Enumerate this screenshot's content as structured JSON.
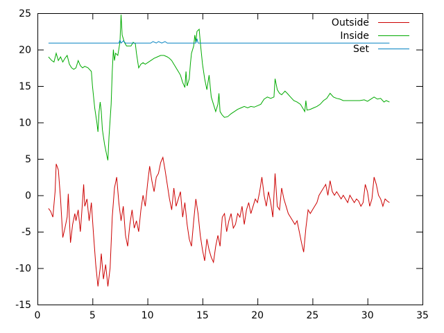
{
  "chart_data": {
    "type": "line",
    "title": "",
    "xlabel": "",
    "ylabel": "",
    "xlim": [
      0,
      35
    ],
    "ylim": [
      -15,
      25
    ],
    "x_ticks": [
      0,
      5,
      10,
      15,
      20,
      25,
      30,
      35
    ],
    "y_ticks": [
      -15,
      -10,
      -5,
      0,
      5,
      10,
      15,
      20,
      25
    ],
    "grid": false,
    "legend_position": "top-right",
    "series": [
      {
        "name": "Outside",
        "color": "#cc0000",
        "points": [
          [
            1.0,
            -1.8
          ],
          [
            1.2,
            -2.2
          ],
          [
            1.4,
            -3.0
          ],
          [
            1.6,
            0.5
          ],
          [
            1.7,
            4.3
          ],
          [
            1.9,
            3.5
          ],
          [
            2.1,
            -0.5
          ],
          [
            2.3,
            -5.8
          ],
          [
            2.5,
            -4.5
          ],
          [
            2.7,
            -3.0
          ],
          [
            2.8,
            0.2
          ],
          [
            3.0,
            -6.5
          ],
          [
            3.2,
            -4.0
          ],
          [
            3.4,
            -2.5
          ],
          [
            3.5,
            -3.5
          ],
          [
            3.7,
            -2.0
          ],
          [
            3.9,
            -5.0
          ],
          [
            4.0,
            -3.0
          ],
          [
            4.2,
            1.5
          ],
          [
            4.3,
            -1.5
          ],
          [
            4.5,
            -0.5
          ],
          [
            4.7,
            -3.5
          ],
          [
            4.9,
            -1.0
          ],
          [
            5.1,
            -5.5
          ],
          [
            5.3,
            -9.5
          ],
          [
            5.5,
            -12.5
          ],
          [
            5.7,
            -10.0
          ],
          [
            5.8,
            -8.0
          ],
          [
            6.0,
            -11.5
          ],
          [
            6.2,
            -9.5
          ],
          [
            6.4,
            -12.5
          ],
          [
            6.6,
            -10.0
          ],
          [
            6.8,
            -3.0
          ],
          [
            7.0,
            1.0
          ],
          [
            7.2,
            2.5
          ],
          [
            7.4,
            -1.0
          ],
          [
            7.6,
            -3.5
          ],
          [
            7.8,
            -1.5
          ],
          [
            8.0,
            -5.5
          ],
          [
            8.2,
            -7.0
          ],
          [
            8.4,
            -4.0
          ],
          [
            8.6,
            -2.0
          ],
          [
            8.8,
            -4.5
          ],
          [
            9.0,
            -3.5
          ],
          [
            9.2,
            -5.0
          ],
          [
            9.4,
            -2.0
          ],
          [
            9.6,
            0.0
          ],
          [
            9.8,
            -1.5
          ],
          [
            10.0,
            1.5
          ],
          [
            10.2,
            4.0
          ],
          [
            10.4,
            2.0
          ],
          [
            10.6,
            0.5
          ],
          [
            10.8,
            2.5
          ],
          [
            11.0,
            3.0
          ],
          [
            11.2,
            4.5
          ],
          [
            11.4,
            5.2
          ],
          [
            11.6,
            3.5
          ],
          [
            11.8,
            1.5
          ],
          [
            12.0,
            -0.5
          ],
          [
            12.2,
            -2.0
          ],
          [
            12.4,
            1.0
          ],
          [
            12.6,
            -1.5
          ],
          [
            12.8,
            -0.5
          ],
          [
            13.0,
            0.5
          ],
          [
            13.2,
            -3.0
          ],
          [
            13.4,
            -1.0
          ],
          [
            13.6,
            -4.0
          ],
          [
            13.8,
            -6.0
          ],
          [
            14.0,
            -7.0
          ],
          [
            14.2,
            -3.5
          ],
          [
            14.4,
            -0.5
          ],
          [
            14.6,
            -2.5
          ],
          [
            14.8,
            -5.5
          ],
          [
            15.0,
            -7.5
          ],
          [
            15.2,
            -9.0
          ],
          [
            15.4,
            -6.0
          ],
          [
            15.6,
            -7.5
          ],
          [
            15.8,
            -8.5
          ],
          [
            16.0,
            -9.2
          ],
          [
            16.2,
            -7.0
          ],
          [
            16.4,
            -5.5
          ],
          [
            16.6,
            -7.0
          ],
          [
            16.8,
            -3.0
          ],
          [
            17.0,
            -2.5
          ],
          [
            17.2,
            -5.0
          ],
          [
            17.4,
            -3.5
          ],
          [
            17.6,
            -2.5
          ],
          [
            17.8,
            -4.5
          ],
          [
            18.0,
            -4.0
          ],
          [
            18.2,
            -2.5
          ],
          [
            18.4,
            -3.0
          ],
          [
            18.6,
            -1.5
          ],
          [
            18.8,
            -4.0
          ],
          [
            19.0,
            -2.0
          ],
          [
            19.2,
            -1.0
          ],
          [
            19.4,
            -2.5
          ],
          [
            19.6,
            -1.5
          ],
          [
            19.8,
            -0.5
          ],
          [
            20.0,
            -1.0
          ],
          [
            20.2,
            0.5
          ],
          [
            20.4,
            2.5
          ],
          [
            20.6,
            0.0
          ],
          [
            20.8,
            -1.5
          ],
          [
            21.0,
            0.5
          ],
          [
            21.2,
            -1.0
          ],
          [
            21.4,
            -3.0
          ],
          [
            21.6,
            3.0
          ],
          [
            21.8,
            -1.5
          ],
          [
            22.0,
            -2.0
          ],
          [
            22.2,
            1.0
          ],
          [
            22.4,
            -0.5
          ],
          [
            22.6,
            -1.5
          ],
          [
            22.8,
            -2.5
          ],
          [
            23.0,
            -3.0
          ],
          [
            23.2,
            -3.5
          ],
          [
            23.4,
            -4.0
          ],
          [
            23.6,
            -3.5
          ],
          [
            23.8,
            -5.0
          ],
          [
            24.0,
            -6.5
          ],
          [
            24.2,
            -7.8
          ],
          [
            24.4,
            -4.5
          ],
          [
            24.6,
            -2.0
          ],
          [
            24.8,
            -2.5
          ],
          [
            25.0,
            -2.0
          ],
          [
            25.2,
            -1.5
          ],
          [
            25.4,
            -1.0
          ],
          [
            25.6,
            0.0
          ],
          [
            25.8,
            0.5
          ],
          [
            26.0,
            1.0
          ],
          [
            26.2,
            1.5
          ],
          [
            26.4,
            0.0
          ],
          [
            26.6,
            2.0
          ],
          [
            26.8,
            0.5
          ],
          [
            27.0,
            0.0
          ],
          [
            27.2,
            0.5
          ],
          [
            27.4,
            0.0
          ],
          [
            27.6,
            -0.5
          ],
          [
            27.8,
            0.0
          ],
          [
            28.0,
            -0.5
          ],
          [
            28.2,
            -1.0
          ],
          [
            28.4,
            0.0
          ],
          [
            28.6,
            -0.5
          ],
          [
            28.8,
            -1.0
          ],
          [
            29.0,
            -0.5
          ],
          [
            29.2,
            -0.8
          ],
          [
            29.4,
            -1.5
          ],
          [
            29.6,
            -1.0
          ],
          [
            29.8,
            1.5
          ],
          [
            30.0,
            0.5
          ],
          [
            30.2,
            -1.5
          ],
          [
            30.4,
            -0.5
          ],
          [
            30.6,
            2.5
          ],
          [
            30.8,
            1.5
          ],
          [
            31.0,
            0.0
          ],
          [
            31.2,
            -0.5
          ],
          [
            31.4,
            -1.5
          ],
          [
            31.6,
            -0.5
          ],
          [
            31.8,
            -0.8
          ],
          [
            32.0,
            -1.0
          ]
        ]
      },
      {
        "name": "Inside",
        "color": "#00aa00",
        "points": [
          [
            1.0,
            19.0
          ],
          [
            1.3,
            18.5
          ],
          [
            1.5,
            18.3
          ],
          [
            1.7,
            19.5
          ],
          [
            1.9,
            18.5
          ],
          [
            2.1,
            19.0
          ],
          [
            2.3,
            18.3
          ],
          [
            2.5,
            18.8
          ],
          [
            2.7,
            19.2
          ],
          [
            2.9,
            18.0
          ],
          [
            3.1,
            17.5
          ],
          [
            3.3,
            17.3
          ],
          [
            3.5,
            17.5
          ],
          [
            3.7,
            18.5
          ],
          [
            3.9,
            17.8
          ],
          [
            4.1,
            17.5
          ],
          [
            4.3,
            17.7
          ],
          [
            4.6,
            17.5
          ],
          [
            4.9,
            17.0
          ],
          [
            5.0,
            15.0
          ],
          [
            5.2,
            12.0
          ],
          [
            5.4,
            10.0
          ],
          [
            5.5,
            8.7
          ],
          [
            5.6,
            11.5
          ],
          [
            5.7,
            12.8
          ],
          [
            5.8,
            11.5
          ],
          [
            5.9,
            9.0
          ],
          [
            6.1,
            7.0
          ],
          [
            6.3,
            5.5
          ],
          [
            6.4,
            4.8
          ],
          [
            6.5,
            8.0
          ],
          [
            6.7,
            12.5
          ],
          [
            6.8,
            17.0
          ],
          [
            6.9,
            20.0
          ],
          [
            7.0,
            18.5
          ],
          [
            7.1,
            19.5
          ],
          [
            7.3,
            19.2
          ],
          [
            7.5,
            21.0
          ],
          [
            7.6,
            24.8
          ],
          [
            7.7,
            22.0
          ],
          [
            7.9,
            21.0
          ],
          [
            8.1,
            20.5
          ],
          [
            8.3,
            20.5
          ],
          [
            8.5,
            20.5
          ],
          [
            8.7,
            21.0
          ],
          [
            8.9,
            20.8
          ],
          [
            9.0,
            19.5
          ],
          [
            9.2,
            17.5
          ],
          [
            9.4,
            18.0
          ],
          [
            9.6,
            18.2
          ],
          [
            9.8,
            18.0
          ],
          [
            10.0,
            18.2
          ],
          [
            10.3,
            18.5
          ],
          [
            10.6,
            18.8
          ],
          [
            10.9,
            19.0
          ],
          [
            11.2,
            19.2
          ],
          [
            11.5,
            19.2
          ],
          [
            11.8,
            19.0
          ],
          [
            12.0,
            18.8
          ],
          [
            12.2,
            18.5
          ],
          [
            12.4,
            18.0
          ],
          [
            12.6,
            17.5
          ],
          [
            12.8,
            17.0
          ],
          [
            13.0,
            16.5
          ],
          [
            13.2,
            15.5
          ],
          [
            13.4,
            14.8
          ],
          [
            13.5,
            17.0
          ],
          [
            13.6,
            15.0
          ],
          [
            13.8,
            16.0
          ],
          [
            13.9,
            18.0
          ],
          [
            14.0,
            19.5
          ],
          [
            14.2,
            20.5
          ],
          [
            14.3,
            22.0
          ],
          [
            14.4,
            21.0
          ],
          [
            14.5,
            22.5
          ],
          [
            14.7,
            22.8
          ],
          [
            14.8,
            21.0
          ],
          [
            15.0,
            18.0
          ],
          [
            15.2,
            16.0
          ],
          [
            15.4,
            14.5
          ],
          [
            15.6,
            16.5
          ],
          [
            15.8,
            13.5
          ],
          [
            16.0,
            12.5
          ],
          [
            16.2,
            11.5
          ],
          [
            16.4,
            12.5
          ],
          [
            16.5,
            14.0
          ],
          [
            16.6,
            11.5
          ],
          [
            16.8,
            11.0
          ],
          [
            17.0,
            10.7
          ],
          [
            17.3,
            10.8
          ],
          [
            17.6,
            11.2
          ],
          [
            17.9,
            11.5
          ],
          [
            18.2,
            11.8
          ],
          [
            18.5,
            12.0
          ],
          [
            18.8,
            12.2
          ],
          [
            19.1,
            12.0
          ],
          [
            19.4,
            12.2
          ],
          [
            19.7,
            12.1
          ],
          [
            20.0,
            12.3
          ],
          [
            20.3,
            12.5
          ],
          [
            20.6,
            13.2
          ],
          [
            20.9,
            13.5
          ],
          [
            21.2,
            13.3
          ],
          [
            21.5,
            13.5
          ],
          [
            21.6,
            16.0
          ],
          [
            21.8,
            14.5
          ],
          [
            22.0,
            14.0
          ],
          [
            22.2,
            13.8
          ],
          [
            22.5,
            14.3
          ],
          [
            22.7,
            14.0
          ],
          [
            23.0,
            13.5
          ],
          [
            23.3,
            13.0
          ],
          [
            23.6,
            12.8
          ],
          [
            23.9,
            12.5
          ],
          [
            24.1,
            12.0
          ],
          [
            24.3,
            11.5
          ],
          [
            24.4,
            13.0
          ],
          [
            24.5,
            11.7
          ],
          [
            24.8,
            11.8
          ],
          [
            25.1,
            12.0
          ],
          [
            25.4,
            12.2
          ],
          [
            25.7,
            12.5
          ],
          [
            26.0,
            13.0
          ],
          [
            26.3,
            13.3
          ],
          [
            26.6,
            14.0
          ],
          [
            26.9,
            13.5
          ],
          [
            27.2,
            13.3
          ],
          [
            27.5,
            13.2
          ],
          [
            27.8,
            13.0
          ],
          [
            28.1,
            13.0
          ],
          [
            28.5,
            13.0
          ],
          [
            28.9,
            13.0
          ],
          [
            29.3,
            13.0
          ],
          [
            29.7,
            13.1
          ],
          [
            30.0,
            12.9
          ],
          [
            30.3,
            13.2
          ],
          [
            30.6,
            13.5
          ],
          [
            30.9,
            13.2
          ],
          [
            31.2,
            13.3
          ],
          [
            31.5,
            12.8
          ],
          [
            31.7,
            13.0
          ],
          [
            32.0,
            12.8
          ]
        ]
      },
      {
        "name": "Set",
        "color": "#0080c0",
        "points": [
          [
            1.0,
            20.9
          ],
          [
            7.4,
            20.9
          ],
          [
            7.5,
            21.3
          ],
          [
            7.6,
            20.9
          ],
          [
            7.8,
            21.2
          ],
          [
            8.0,
            20.9
          ],
          [
            10.3,
            20.9
          ],
          [
            10.5,
            21.1
          ],
          [
            10.8,
            20.9
          ],
          [
            11.0,
            21.1
          ],
          [
            11.3,
            20.9
          ],
          [
            11.6,
            21.1
          ],
          [
            11.8,
            20.9
          ],
          [
            14.4,
            20.9
          ],
          [
            14.5,
            21.5
          ],
          [
            14.6,
            20.9
          ],
          [
            32.0,
            20.9
          ]
        ]
      }
    ]
  }
}
